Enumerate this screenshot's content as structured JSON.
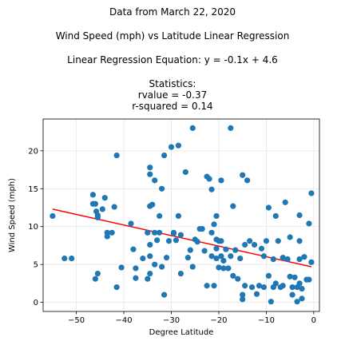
{
  "title_lines": {
    "line1": "Data from March 22, 2020",
    "line2": "Wind Speed (mph) vs Latitude Linear Regression",
    "line3": "Linear Regression Equation: y = -0.1x + 4.6",
    "line4": "Statistics:",
    "line5": "rvalue = -0.37",
    "line6": "r-squared = 0.14"
  },
  "chart_data": {
    "type": "scatter",
    "title": "Data from March 22, 2020",
    "subtitle": "Wind Speed (mph) vs Latitude Linear Regression",
    "xlabel": "Degree Latitude",
    "ylabel": "Wind Speed (mph)",
    "xlim": [
      -57,
      1.2
    ],
    "ylim": [
      -1.2,
      24.2
    ],
    "xticks": [
      -50,
      -40,
      -30,
      -20,
      -10,
      0
    ],
    "yticks": [
      0,
      5,
      10,
      15,
      20
    ],
    "grid": true,
    "point_color": "#1f77b4",
    "line_color": "#ff0000",
    "regression": {
      "slope": -0.1,
      "intercept": 4.6,
      "x_start": -55,
      "x_end": -0.5,
      "y_start": 12.3,
      "y_end": 4.7
    },
    "points": [
      [
        -55,
        11.4
      ],
      [
        -52.5,
        5.8
      ],
      [
        -51,
        5.8
      ],
      [
        -46.5,
        14.2
      ],
      [
        -46.5,
        13
      ],
      [
        -46,
        13
      ],
      [
        -45.8,
        12
      ],
      [
        -45.5,
        11.5
      ],
      [
        -45.5,
        11.2
      ],
      [
        -46,
        3.1
      ],
      [
        -45.5,
        3.8
      ],
      [
        -44.5,
        12.3
      ],
      [
        -44,
        13.8
      ],
      [
        -43.5,
        9.2
      ],
      [
        -43.5,
        8.7
      ],
      [
        -42.5,
        9.2
      ],
      [
        -42,
        12.6
      ],
      [
        -41.5,
        19.4
      ],
      [
        -41.5,
        2.0
      ],
      [
        -40.5,
        4.6
      ],
      [
        -38.5,
        10.4
      ],
      [
        -38,
        7.0
      ],
      [
        -37.5,
        4.5
      ],
      [
        -37.5,
        3.2
      ],
      [
        -36,
        5.8
      ],
      [
        -35,
        9.2
      ],
      [
        -35,
        3.1
      ],
      [
        -34.5,
        17.8
      ],
      [
        -34.5,
        16.9
      ],
      [
        -34.5,
        12.7
      ],
      [
        -34.5,
        7.6
      ],
      [
        -34.5,
        6.1
      ],
      [
        -34.5,
        3.8
      ],
      [
        -34,
        12.9
      ],
      [
        -33.5,
        16.1
      ],
      [
        -33.5,
        9.2
      ],
      [
        -33.5,
        5.0
      ],
      [
        -33,
        8.2
      ],
      [
        -32.5,
        11.4
      ],
      [
        -32.5,
        9.2
      ],
      [
        -32,
        15
      ],
      [
        -32,
        4.7
      ],
      [
        -31.5,
        19.4
      ],
      [
        -31.5,
        1.0
      ],
      [
        -31,
        5.9
      ],
      [
        -30.5,
        8.1
      ],
      [
        -30,
        20.5
      ],
      [
        -29.5,
        9.2
      ],
      [
        -29.5,
        9.1
      ],
      [
        -29,
        8.2
      ],
      [
        -28.5,
        20.7
      ],
      [
        -28.5,
        11.4
      ],
      [
        -28,
        8.9
      ],
      [
        -28,
        3.8
      ],
      [
        -27,
        17.2
      ],
      [
        -26.5,
        5.9
      ],
      [
        -26,
        6.9
      ],
      [
        -25.5,
        4.7
      ],
      [
        -25.5,
        23
      ],
      [
        -25,
        8.3
      ],
      [
        -24.5,
        8.0
      ],
      [
        -24,
        9.7
      ],
      [
        -23.5,
        9.7
      ],
      [
        -23,
        6.8
      ],
      [
        -22.5,
        16.6
      ],
      [
        -22.5,
        2.2
      ],
      [
        -22,
        16.3
      ],
      [
        -21.5,
        14.9
      ],
      [
        -21.5,
        9.2
      ],
      [
        -21.5,
        6.1
      ],
      [
        -21,
        10.3
      ],
      [
        -21,
        2.2
      ],
      [
        -20.5,
        11.4
      ],
      [
        -20.5,
        8.3
      ],
      [
        -20.5,
        7.1
      ],
      [
        -20.5,
        5.8
      ],
      [
        -20,
        8.1
      ],
      [
        -20,
        4.6
      ],
      [
        -19.5,
        16.1
      ],
      [
        -19.5,
        8.1
      ],
      [
        -19.5,
        6.1
      ],
      [
        -19,
        5.5
      ],
      [
        -19,
        4.5
      ],
      [
        -18.5,
        7.0
      ],
      [
        -18,
        4.5
      ],
      [
        -17.5,
        23
      ],
      [
        -17.5,
        6.1
      ],
      [
        -17,
        12.7
      ],
      [
        -17,
        3.5
      ],
      [
        -16.5,
        6.9
      ],
      [
        -16,
        3.1
      ],
      [
        -15.5,
        5.8
      ],
      [
        -15,
        16.8
      ],
      [
        -15,
        1.0
      ],
      [
        -15,
        0.4
      ],
      [
        -14.5,
        7.6
      ],
      [
        -14.5,
        2.2
      ],
      [
        -14,
        16.1
      ],
      [
        -13.5,
        8.1
      ],
      [
        -13,
        2.0
      ],
      [
        -12.5,
        7.6
      ],
      [
        -12,
        1.1
      ],
      [
        -11.5,
        2.2
      ],
      [
        -11,
        7.1
      ],
      [
        -10.5,
        6.1
      ],
      [
        -10.5,
        2.0
      ],
      [
        -10,
        8.1
      ],
      [
        -9.5,
        12.5
      ],
      [
        -9.5,
        3.5
      ],
      [
        -9,
        0.1
      ],
      [
        -8.5,
        5.7
      ],
      [
        -8.5,
        2.0
      ],
      [
        -8,
        11.4
      ],
      [
        -8,
        2.5
      ],
      [
        -7.5,
        8.1
      ],
      [
        -7,
        2.0
      ],
      [
        -6.5,
        5.9
      ],
      [
        -6.5,
        2.2
      ],
      [
        -6,
        13.2
      ],
      [
        -5.5,
        5.7
      ],
      [
        -5,
        8.6
      ],
      [
        -5,
        3.4
      ],
      [
        -4.5,
        2.0
      ],
      [
        -4.5,
        1.0
      ],
      [
        -4,
        3.3
      ],
      [
        -3.5,
        2.0
      ],
      [
        -3.5,
        0.1
      ],
      [
        -3,
        11.5
      ],
      [
        -3,
        8.1
      ],
      [
        -3,
        5.7
      ],
      [
        -3,
        2.5
      ],
      [
        -2.5,
        1.8
      ],
      [
        -2.5,
        0.5
      ],
      [
        -2,
        6.0
      ],
      [
        -1.5,
        3.0
      ],
      [
        -1,
        10.4
      ],
      [
        -1,
        3.0
      ],
      [
        -0.5,
        14.4
      ],
      [
        -0.5,
        5.3
      ]
    ]
  }
}
